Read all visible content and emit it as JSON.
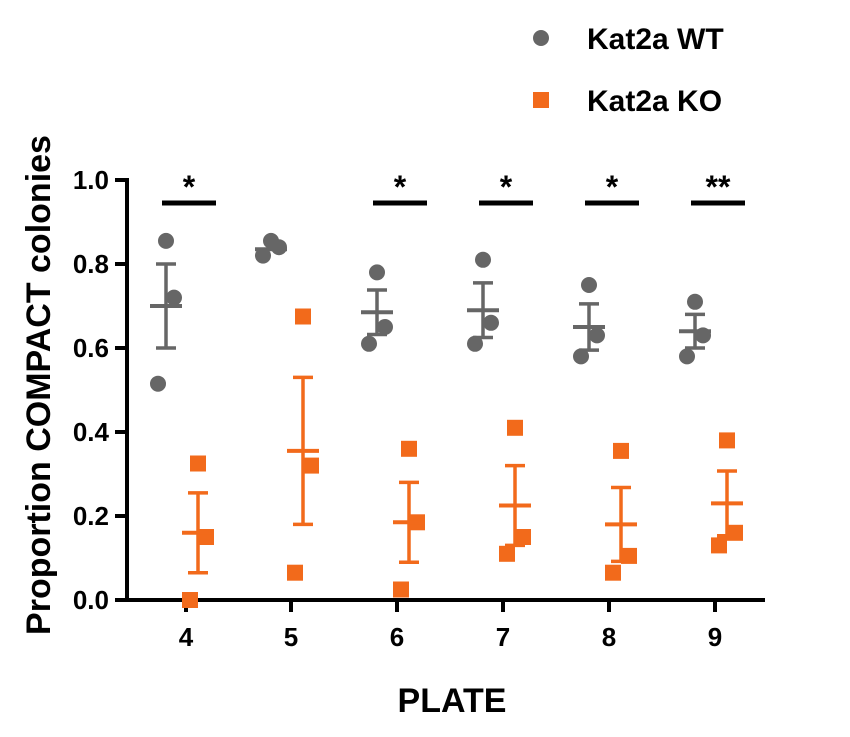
{
  "chart_data": {
    "type": "scatter",
    "title": "",
    "xlabel": "PLATE",
    "ylabel": "Proportion COMPACT colonies",
    "categories": [
      "4",
      "5",
      "6",
      "7",
      "8",
      "9"
    ],
    "ylim": [
      0,
      1.0
    ],
    "yticks": [
      "0.0",
      "0.2",
      "0.4",
      "0.6",
      "0.8",
      "1.0"
    ],
    "legend_position": "top-right",
    "series": [
      {
        "name": "Kat2a WT",
        "color": "#666666",
        "marker": "circle",
        "points": [
          [
            0.855,
            0.72,
            0.515
          ],
          [
            0.855,
            0.84,
            0.82
          ],
          [
            0.78,
            0.65,
            0.61
          ],
          [
            0.81,
            0.66,
            0.61
          ],
          [
            0.75,
            0.63,
            0.58
          ],
          [
            0.71,
            0.63,
            0.58
          ]
        ],
        "mean": [
          0.7,
          0.835,
          0.685,
          0.69,
          0.65,
          0.64
        ],
        "sem": [
          0.1,
          0.0,
          0.053,
          0.065,
          0.055,
          0.04
        ]
      },
      {
        "name": "Kat2a KO",
        "color": "#f26a1b",
        "marker": "square",
        "points": [
          [
            0.325,
            0.15,
            0.0
          ],
          [
            0.675,
            0.32,
            0.065
          ],
          [
            0.36,
            0.185,
            0.025
          ],
          [
            0.41,
            0.15,
            0.11
          ],
          [
            0.355,
            0.105,
            0.065
          ],
          [
            0.38,
            0.16,
            0.13
          ]
        ],
        "mean": [
          0.16,
          0.355,
          0.185,
          0.225,
          0.18,
          0.23
        ],
        "sem": [
          0.095,
          0.175,
          0.095,
          0.095,
          0.088,
          0.077
        ]
      }
    ],
    "annotations": [
      {
        "category": "4",
        "text": "*"
      },
      {
        "category": "6",
        "text": "*"
      },
      {
        "category": "7",
        "text": "*"
      },
      {
        "category": "8",
        "text": "*"
      },
      {
        "category": "9",
        "text": "**"
      }
    ]
  }
}
